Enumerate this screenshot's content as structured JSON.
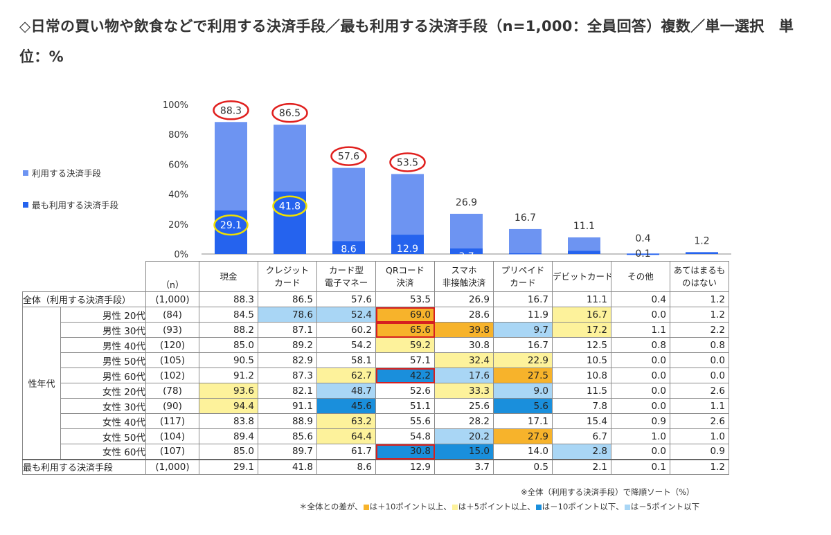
{
  "title": "◇日常の買い物や飲食などで利用する決済手段／最も利用する決済手段（n=1,000：全員回答）複数／単一選択　単位：%",
  "colors": {
    "use": "#6d94f2",
    "most": "#2563ee",
    "circle_red": "#e0201e",
    "circle_yellow": "#f0e000",
    "orange": "#f7b32b",
    "yellow": "#fdf29b",
    "blue": "#1a8fdc",
    "light_blue": "#a9d6f5"
  },
  "chart_data": {
    "type": "bar",
    "categories": [
      "現金",
      "クレジットカード",
      "カード型電子マネー",
      "QRコード決済",
      "スマホ非接触決済",
      "プリペイドカード",
      "デビットカード",
      "その他",
      "あてはまるものはない"
    ],
    "series": [
      {
        "name": "利用する決済手段",
        "values": [
          88.3,
          86.5,
          57.6,
          53.5,
          26.9,
          16.7,
          11.1,
          0.4,
          1.2
        ]
      },
      {
        "name": "最も利用する決済手段",
        "values": [
          29.1,
          41.8,
          8.6,
          12.9,
          3.7,
          0.5,
          2.1,
          0.1,
          1.2
        ]
      }
    ],
    "ylim": [
      0,
      100
    ],
    "yticks": [
      "0%",
      "20%",
      "40%",
      "60%",
      "80%",
      "100%"
    ],
    "legend_placement": "left",
    "red_circled_categories": [
      0,
      1,
      2,
      3
    ],
    "yellow_circled_categories": [
      0,
      1
    ]
  },
  "table": {
    "n_header": "（n）",
    "headers": [
      [
        "現金"
      ],
      [
        "クレジット",
        "カード"
      ],
      [
        "カード型",
        "電子マネー"
      ],
      [
        "QRコード",
        "決済"
      ],
      [
        "スマホ",
        "非接触決済"
      ],
      [
        "プリペイド",
        "カード"
      ],
      [
        "デビットカード"
      ],
      [
        "その他"
      ],
      [
        "あてはまるも",
        "のはない"
      ]
    ],
    "group_label": "性年代",
    "rows": [
      {
        "label": "全体（利用する決済手段）",
        "n": "(1,000)",
        "values": [
          "88.3",
          "86.5",
          "57.6",
          "53.5",
          "26.9",
          "16.7",
          "11.1",
          "0.4",
          "1.2"
        ],
        "hl": [
          "",
          "",
          "",
          "",
          "",
          "",
          "",
          "",
          ""
        ],
        "box": []
      },
      {
        "label": "男性 20代",
        "n": "(84)",
        "values": [
          "84.5",
          "78.6",
          "52.4",
          "69.0",
          "28.6",
          "11.9",
          "16.7",
          "0.0",
          "1.2"
        ],
        "hl": [
          "",
          "lblue",
          "lblue",
          "orange",
          "",
          "",
          "yellow",
          "",
          ""
        ],
        "box": [
          3
        ]
      },
      {
        "label": "男性 30代",
        "n": "(93)",
        "values": [
          "88.2",
          "87.1",
          "60.2",
          "65.6",
          "39.8",
          "9.7",
          "17.2",
          "1.1",
          "2.2"
        ],
        "hl": [
          "",
          "",
          "",
          "orange",
          "orange",
          "lblue",
          "yellow",
          "",
          ""
        ],
        "box": [
          3
        ]
      },
      {
        "label": "男性 40代",
        "n": "(120)",
        "values": [
          "85.0",
          "89.2",
          "54.2",
          "59.2",
          "30.8",
          "16.7",
          "12.5",
          "0.8",
          "0.8"
        ],
        "hl": [
          "",
          "",
          "",
          "yellow",
          "",
          "",
          "",
          "",
          ""
        ],
        "box": []
      },
      {
        "label": "男性 50代",
        "n": "(105)",
        "values": [
          "90.5",
          "82.9",
          "58.1",
          "57.1",
          "32.4",
          "22.9",
          "10.5",
          "0.0",
          "0.0"
        ],
        "hl": [
          "",
          "",
          "",
          "",
          "yellow",
          "yellow",
          "",
          "",
          ""
        ],
        "box": []
      },
      {
        "label": "男性 60代",
        "n": "(102)",
        "values": [
          "91.2",
          "87.3",
          "62.7",
          "42.2",
          "17.6",
          "27.5",
          "10.8",
          "0.0",
          "0.0"
        ],
        "hl": [
          "",
          "",
          "yellow",
          "blue",
          "lblue",
          "orange",
          "",
          "",
          ""
        ],
        "box": [
          3
        ]
      },
      {
        "label": "女性 20代",
        "n": "(78)",
        "values": [
          "93.6",
          "82.1",
          "48.7",
          "52.6",
          "33.3",
          "9.0",
          "11.5",
          "0.0",
          "2.6"
        ],
        "hl": [
          "yellow",
          "",
          "lblue",
          "",
          "yellow",
          "lblue",
          "",
          "",
          ""
        ],
        "box": []
      },
      {
        "label": "女性 30代",
        "n": "(90)",
        "values": [
          "94.4",
          "91.1",
          "45.6",
          "51.1",
          "25.6",
          "5.6",
          "7.8",
          "0.0",
          "1.1"
        ],
        "hl": [
          "yellow",
          "",
          "blue",
          "",
          "",
          "blue",
          "",
          "",
          ""
        ],
        "box": []
      },
      {
        "label": "女性 40代",
        "n": "(117)",
        "values": [
          "83.8",
          "88.9",
          "63.2",
          "55.6",
          "28.2",
          "17.1",
          "15.4",
          "0.9",
          "2.6"
        ],
        "hl": [
          "",
          "",
          "yellow",
          "",
          "",
          "",
          "",
          "",
          ""
        ],
        "box": []
      },
      {
        "label": "女性 50代",
        "n": "(104)",
        "values": [
          "89.4",
          "85.6",
          "64.4",
          "54.8",
          "20.2",
          "27.9",
          "6.7",
          "1.0",
          "1.0"
        ],
        "hl": [
          "",
          "",
          "yellow",
          "",
          "lblue",
          "orange",
          "",
          "",
          ""
        ],
        "box": []
      },
      {
        "label": "女性 60代",
        "n": "(107)",
        "values": [
          "85.0",
          "89.7",
          "61.7",
          "30.8",
          "15.0",
          "14.0",
          "2.8",
          "0.0",
          "0.9"
        ],
        "hl": [
          "",
          "",
          "",
          "blue",
          "blue",
          "",
          "lblue",
          "",
          ""
        ],
        "box": [
          3
        ]
      },
      {
        "label": "最も利用する決済手段",
        "n": "(1,000)",
        "values": [
          "29.1",
          "41.8",
          "8.6",
          "12.9",
          "3.7",
          "0.5",
          "2.1",
          "0.1",
          "1.2"
        ],
        "hl": [
          "",
          "",
          "",
          "",
          "",
          "",
          "",
          "",
          ""
        ],
        "box": []
      }
    ]
  },
  "notes": {
    "sort": "※全体（利用する決済手段）で降順ソート（%）",
    "legend_prefix": "＊全体との差が、",
    "legend_orange": "は＋10ポイント以上、",
    "legend_yellow": "は＋5ポイント以上、",
    "legend_blue": "は－10ポイント以下、",
    "legend_lblue": "は－5ポイント以下"
  }
}
